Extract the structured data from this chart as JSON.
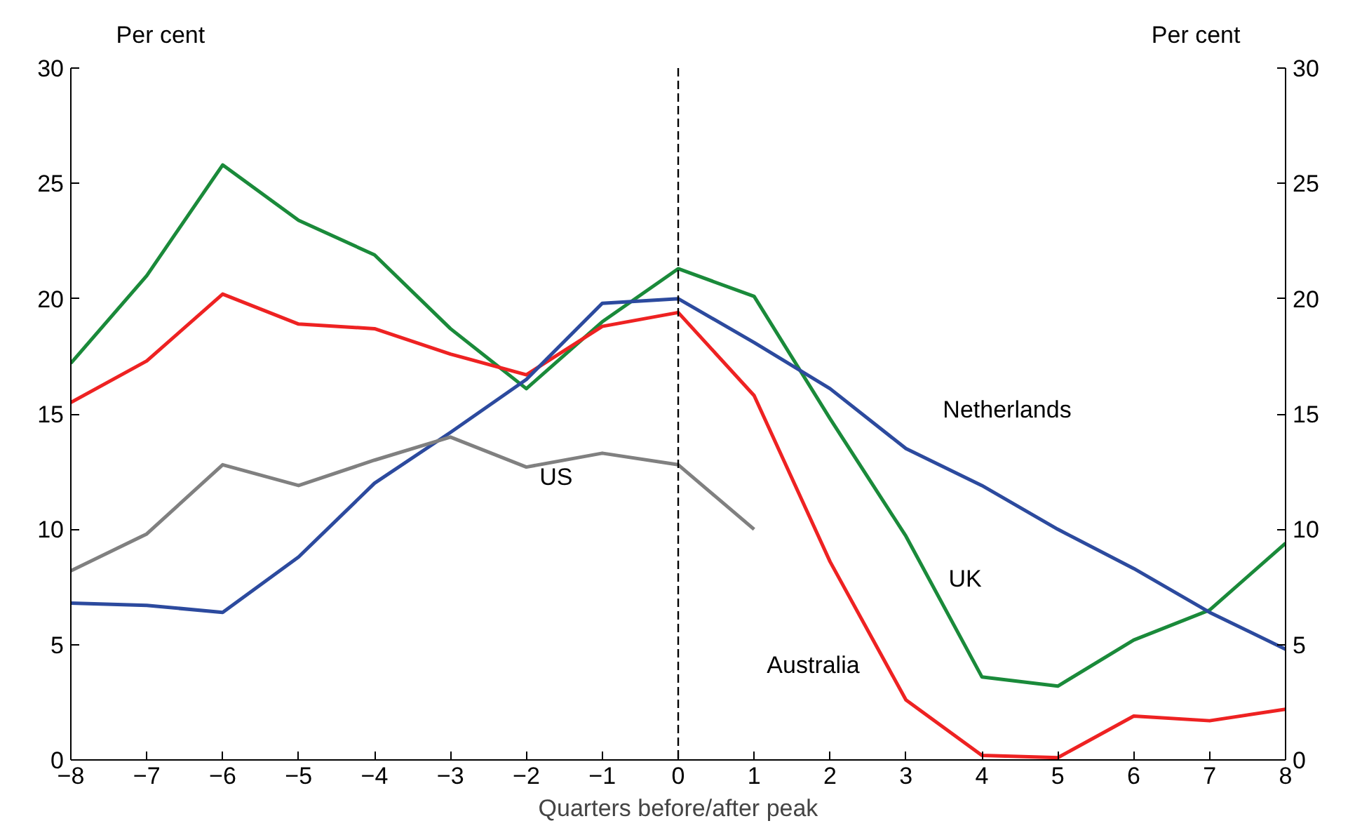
{
  "chart_data": {
    "type": "line",
    "xlabel": "Quarters before/after peak",
    "ylabel": "Per cent",
    "y2label": "Per cent",
    "x": [
      -8,
      -7,
      -6,
      -5,
      -4,
      -3,
      -2,
      -1,
      0,
      1,
      2,
      3,
      4,
      5,
      6,
      7,
      8
    ],
    "xlim": [
      -8,
      8
    ],
    "xticks": [
      -8,
      -7,
      -6,
      -5,
      -4,
      -3,
      -2,
      -1,
      0,
      1,
      2,
      3,
      4,
      5,
      6,
      7,
      8
    ],
    "ylim": [
      0,
      30
    ],
    "yticks": [
      0,
      5,
      10,
      15,
      20,
      25,
      30
    ],
    "y2lim": [
      0,
      30
    ],
    "y2ticks": [
      0,
      5,
      10,
      15,
      20,
      25,
      30
    ],
    "grid": false,
    "legend": false,
    "line_style": "solid",
    "marker": "none",
    "series": [
      {
        "name": "UK",
        "color": "#1a8a3a",
        "values": [
          17.2,
          21.0,
          25.8,
          23.4,
          21.9,
          18.7,
          16.1,
          19.0,
          21.3,
          20.1,
          14.8,
          9.7,
          3.6,
          3.2,
          5.2,
          6.5,
          9.4
        ]
      },
      {
        "name": "Australia",
        "color": "#ee2222",
        "values": [
          15.5,
          17.3,
          20.2,
          18.9,
          18.7,
          17.6,
          16.7,
          18.8,
          19.4,
          15.8,
          8.6,
          2.6,
          0.2,
          0.1,
          1.9,
          1.7,
          2.2
        ]
      },
      {
        "name": "Netherlands",
        "color": "#2c4a9e",
        "values": [
          6.8,
          6.7,
          6.4,
          8.8,
          12.0,
          14.2,
          16.5,
          19.8,
          20.0,
          18.1,
          16.1,
          13.5,
          11.9,
          10.0,
          8.3,
          6.4,
          4.8
        ]
      },
      {
        "name": "US",
        "color": "#808080",
        "values": [
          8.2,
          9.8,
          12.8,
          11.9,
          13.0,
          14.0,
          12.7,
          13.3,
          12.8,
          10.0,
          null,
          null,
          null,
          null,
          null,
          null,
          null
        ]
      }
    ],
    "ref_lines": [
      {
        "axis": "x",
        "value": 0,
        "color": "#000000",
        "line_style": "dashed"
      }
    ]
  }
}
